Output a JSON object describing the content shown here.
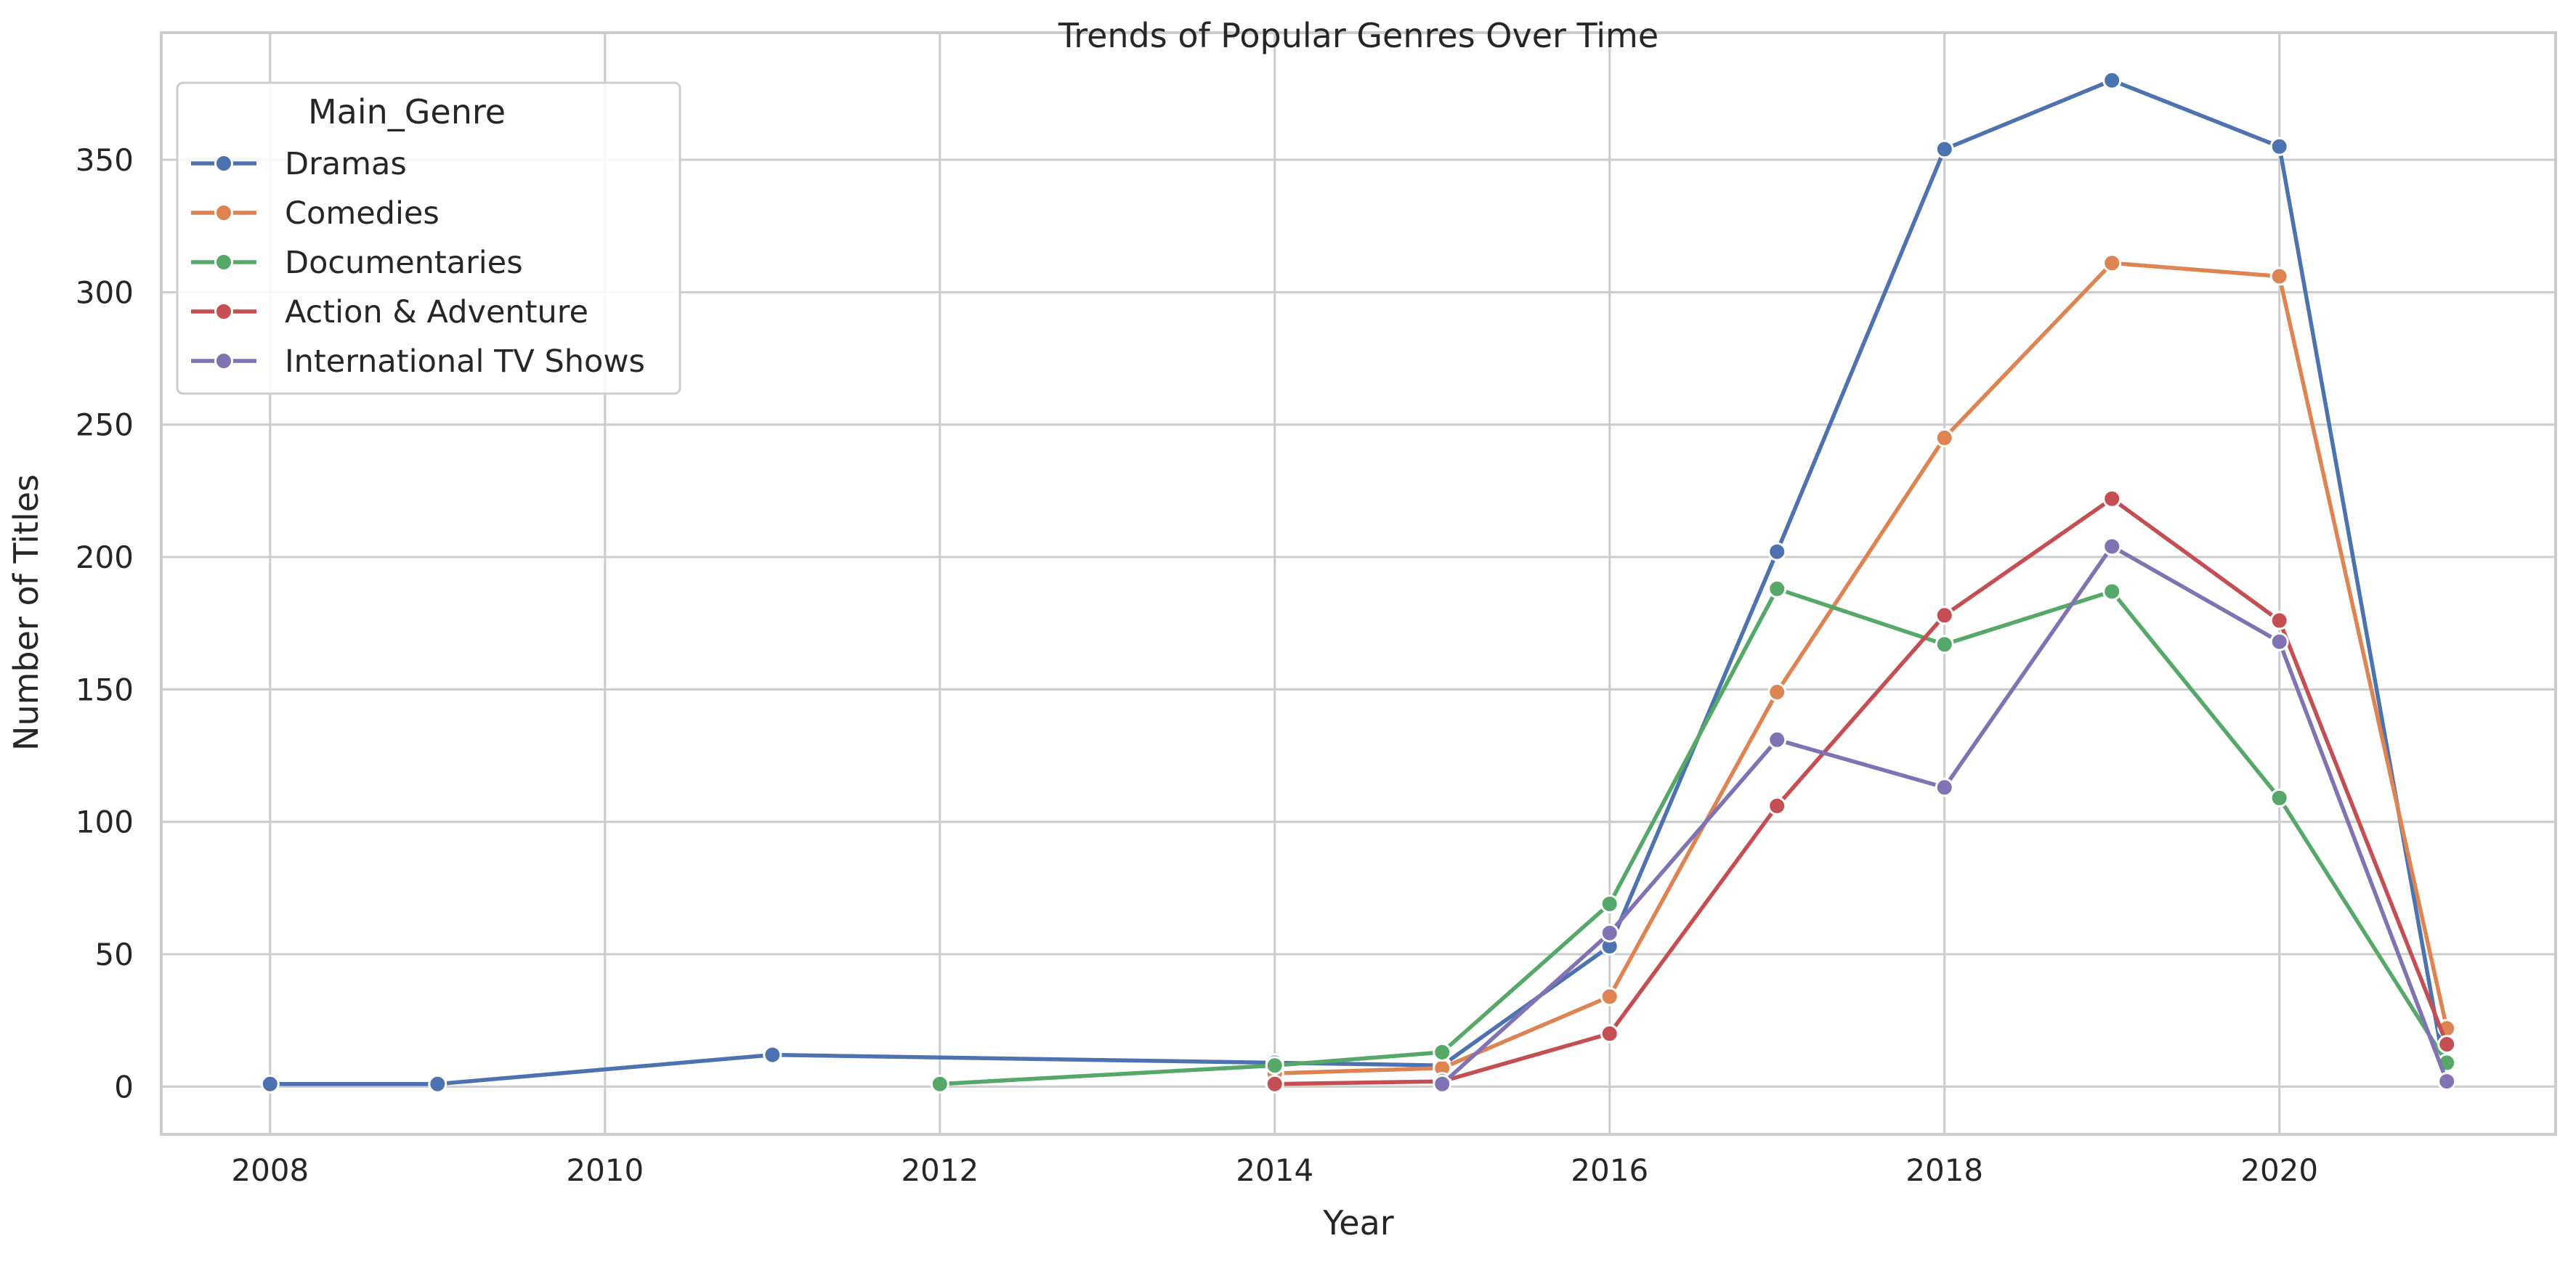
{
  "chart_data": {
    "type": "line",
    "title": "Trends of Popular Genres Over Time",
    "xlabel": "Year",
    "ylabel": "Number of Titles",
    "xlim": [
      2007.35,
      2021.65
    ],
    "ylim": [
      -18,
      398
    ],
    "x_ticks": [
      2008,
      2010,
      2012,
      2014,
      2016,
      2018,
      2020
    ],
    "x_tick_labels": [
      "2008",
      "2010",
      "2012",
      "2014",
      "2016",
      "2018",
      "2020"
    ],
    "y_ticks": [
      0,
      50,
      100,
      150,
      200,
      250,
      300,
      350
    ],
    "y_tick_labels": [
      "0",
      "50",
      "100",
      "150",
      "200",
      "250",
      "300",
      "350"
    ],
    "grid": true,
    "legend_title": "Main_Genre",
    "legend_position": "top-left",
    "series": [
      {
        "name": "Dramas",
        "color": "#4c72b0",
        "points": [
          [
            2008,
            1
          ],
          [
            2009,
            1
          ],
          [
            2011,
            12
          ],
          [
            2014,
            9
          ],
          [
            2015,
            8
          ],
          [
            2016,
            53
          ],
          [
            2017,
            202
          ],
          [
            2018,
            354
          ],
          [
            2019,
            380
          ],
          [
            2020,
            355
          ],
          [
            2021,
            2
          ]
        ]
      },
      {
        "name": "Comedies",
        "color": "#dd8452",
        "points": [
          [
            2014,
            5
          ],
          [
            2015,
            7
          ],
          [
            2016,
            34
          ],
          [
            2017,
            149
          ],
          [
            2018,
            245
          ],
          [
            2019,
            311
          ],
          [
            2020,
            306
          ],
          [
            2021,
            22
          ]
        ]
      },
      {
        "name": "Documentaries",
        "color": "#55a868",
        "points": [
          [
            2012,
            1
          ],
          [
            2014,
            8
          ],
          [
            2015,
            13
          ],
          [
            2016,
            69
          ],
          [
            2017,
            188
          ],
          [
            2018,
            167
          ],
          [
            2019,
            187
          ],
          [
            2020,
            109
          ],
          [
            2021,
            9
          ]
        ]
      },
      {
        "name": "Action & Adventure",
        "color": "#c44e52",
        "points": [
          [
            2014,
            1
          ],
          [
            2015,
            2
          ],
          [
            2016,
            20
          ],
          [
            2017,
            106
          ],
          [
            2018,
            178
          ],
          [
            2019,
            222
          ],
          [
            2020,
            176
          ],
          [
            2021,
            16
          ]
        ]
      },
      {
        "name": "International TV Shows",
        "color": "#8172b3",
        "points": [
          [
            2015,
            1
          ],
          [
            2016,
            58
          ],
          [
            2017,
            131
          ],
          [
            2018,
            113
          ],
          [
            2019,
            204
          ],
          [
            2020,
            168
          ],
          [
            2021,
            2
          ]
        ]
      }
    ]
  }
}
